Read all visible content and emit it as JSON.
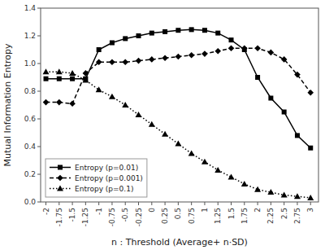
{
  "chart_data": {
    "type": "line",
    "xlabel": "n : Threshold (Average+ n·SD)",
    "ylabel": "Mutual Information Entropy",
    "x": [
      -2,
      -1.75,
      -1.5,
      -1.25,
      -1,
      -0.75,
      -0.5,
      -0.25,
      0,
      0.25,
      0.5,
      0.75,
      1,
      1.25,
      1.5,
      1.75,
      2,
      2.25,
      2.5,
      2.75,
      3
    ],
    "series": [
      {
        "name": "Entropy (p=0.01)",
        "color": "#000000",
        "line_style": "solid",
        "marker": "square",
        "values": [
          0.89,
          0.89,
          0.89,
          0.89,
          1.1,
          1.15,
          1.18,
          1.2,
          1.22,
          1.23,
          1.24,
          1.245,
          1.24,
          1.22,
          1.17,
          1.1,
          0.9,
          0.75,
          0.65,
          0.48,
          0.39
        ]
      },
      {
        "name": "Entropy (p=0.001)",
        "color": "#000000",
        "line_style": "dashed",
        "marker": "diamond",
        "values": [
          0.72,
          0.72,
          0.71,
          0.93,
          1.01,
          1.01,
          1.01,
          1.02,
          1.03,
          1.04,
          1.05,
          1.06,
          1.07,
          1.09,
          1.11,
          1.11,
          1.11,
          1.08,
          1.03,
          0.92,
          0.79
        ]
      },
      {
        "name": "Entropy (p=0.1)",
        "color": "#000000",
        "line_style": "dotted",
        "marker": "triangle",
        "values": [
          0.94,
          0.94,
          0.93,
          0.88,
          0.81,
          0.76,
          0.7,
          0.63,
          0.56,
          0.49,
          0.42,
          0.35,
          0.29,
          0.23,
          0.18,
          0.13,
          0.09,
          0.07,
          0.05,
          0.04,
          0.03
        ]
      }
    ],
    "xlim": [
      -2.1,
      3.15
    ],
    "xticks": [
      -2,
      -1.75,
      -1.5,
      -1.25,
      -1,
      -0.75,
      -0.5,
      -0.25,
      0,
      0.25,
      0.5,
      0.75,
      1,
      1.25,
      1.5,
      1.75,
      2,
      2.25,
      2.5,
      2.75,
      3
    ],
    "ylim": [
      0,
      1.4
    ],
    "yticks": [
      {
        "value": 0,
        "label": "0.0"
      },
      0.2,
      0.4,
      0.6,
      0.8,
      {
        "value": 1,
        "label": "1.0"
      },
      1.2,
      1.4
    ],
    "grid": false,
    "legend": "lower left"
  }
}
